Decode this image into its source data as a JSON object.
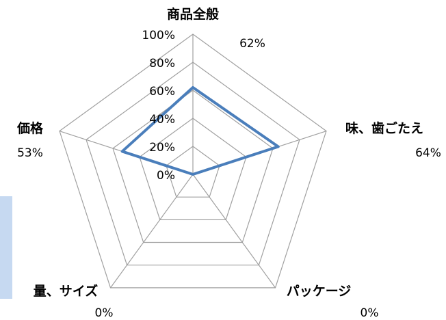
{
  "chart_data": {
    "type": "radar",
    "categories": [
      "商品全般",
      "味、歯ごたえ",
      "パッケージ",
      "量、サイズ",
      "価格"
    ],
    "series": [
      {
        "values": [
          62,
          64,
          0,
          0,
          53
        ],
        "color": "#4a7ebb"
      }
    ],
    "value_labels": [
      "62%",
      "64%",
      "0%",
      "0%",
      "53%"
    ],
    "radial_ticks": [
      "0%",
      "20%",
      "40%",
      "60%",
      "80%",
      "100%"
    ],
    "rlim": [
      0,
      100
    ],
    "grid": true,
    "legend": false
  },
  "colors": {
    "grid": "#a0a0a0",
    "series": "#4a7ebb",
    "accent_strip": "#c6d9f1"
  }
}
